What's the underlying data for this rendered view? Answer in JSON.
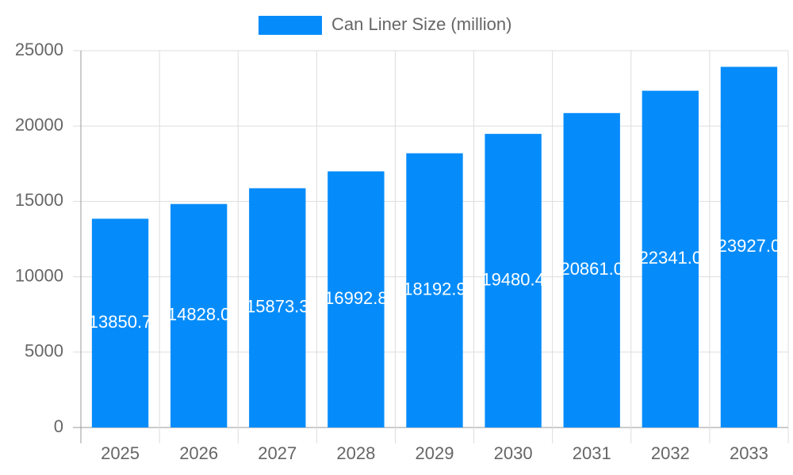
{
  "chart_data": {
    "type": "bar",
    "legend_label": "Can Liner Size (million)",
    "categories": [
      "2025",
      "2026",
      "2027",
      "2028",
      "2029",
      "2030",
      "2031",
      "2032",
      "2033"
    ],
    "values": [
      13850.7,
      14828.0,
      15873.3,
      16992.8,
      18192.9,
      19480.4,
      20861.0,
      22341.0,
      23927.0
    ],
    "value_labels": [
      "13850.7",
      "14828.0",
      "15873.3",
      "16992.8",
      "18192.9",
      "19480.4",
      "20861.0",
      "22341.0",
      "23927.0"
    ],
    "color": "#068cfa",
    "ylim": [
      0,
      25000
    ],
    "yticks": [
      0,
      5000,
      10000,
      15000,
      20000,
      25000
    ],
    "grid": true
  }
}
